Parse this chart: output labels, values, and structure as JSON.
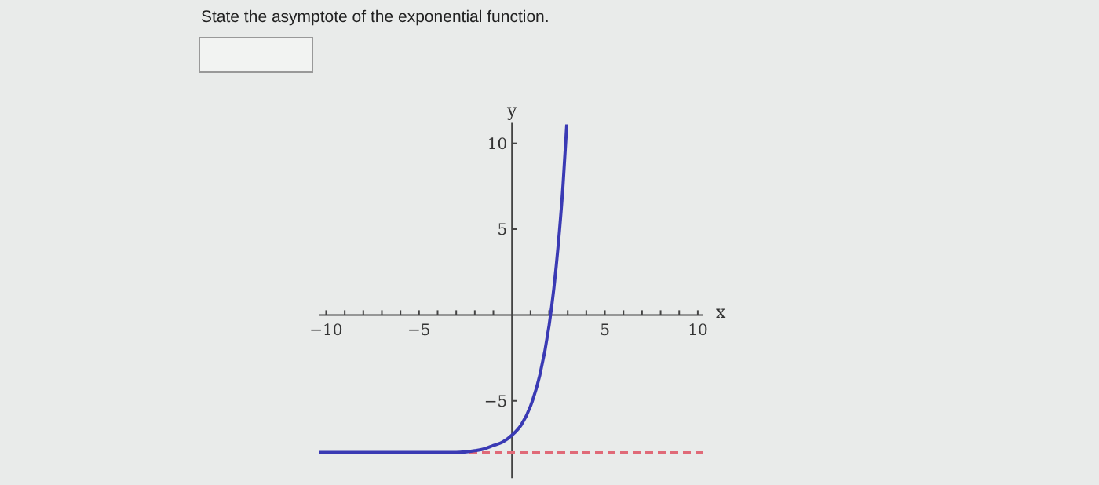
{
  "chart_data": {
    "type": "line",
    "title": "State the asymptote of the exponential function.",
    "xlabel": "x",
    "ylabel": "y",
    "x": [
      -10.4,
      -6,
      -4,
      -3,
      -2,
      -1.5,
      -1,
      -0.5,
      0,
      0.5,
      1,
      1.5,
      2,
      2.25,
      2.5,
      2.75,
      2.95
    ],
    "series": [
      {
        "color": "#3a3ab4",
        "values": [
          -8.0,
          -8.0,
          -8.0,
          -8.0,
          -7.9,
          -7.8,
          -7.6,
          -7.4,
          -7.0,
          -6.4,
          -5.3,
          -3.5,
          -0.6,
          1.5,
          4.2,
          7.6,
          11.1
        ]
      }
    ],
    "xlim": [
      -10.4,
      10.3
    ],
    "ylim": [
      -9.5,
      11.2
    ],
    "xticks": [
      -10,
      {
        "value": -9,
        "label": null
      },
      {
        "value": -8,
        "label": null
      },
      {
        "value": -7,
        "label": null
      },
      {
        "value": -6,
        "label": null
      },
      -5,
      {
        "value": -4,
        "label": null
      },
      {
        "value": -3,
        "label": null
      },
      {
        "value": -2,
        "label": null
      },
      {
        "value": -1,
        "label": null
      },
      {
        "value": 1,
        "label": null
      },
      {
        "value": 2,
        "label": null
      },
      {
        "value": 3,
        "label": null
      },
      {
        "value": 4,
        "label": null
      },
      5,
      {
        "value": 6,
        "label": null
      },
      {
        "value": 7,
        "label": null
      },
      {
        "value": 8,
        "label": null
      },
      {
        "value": 9,
        "label": null
      },
      10
    ],
    "yticks": [
      -5,
      5,
      10
    ],
    "ref_lines": [
      {
        "axis": "y",
        "value": -8,
        "color": "#e06a78",
        "line_style": "dashed"
      }
    ],
    "grid": false,
    "marker": "none",
    "line_style": "solid"
  }
}
